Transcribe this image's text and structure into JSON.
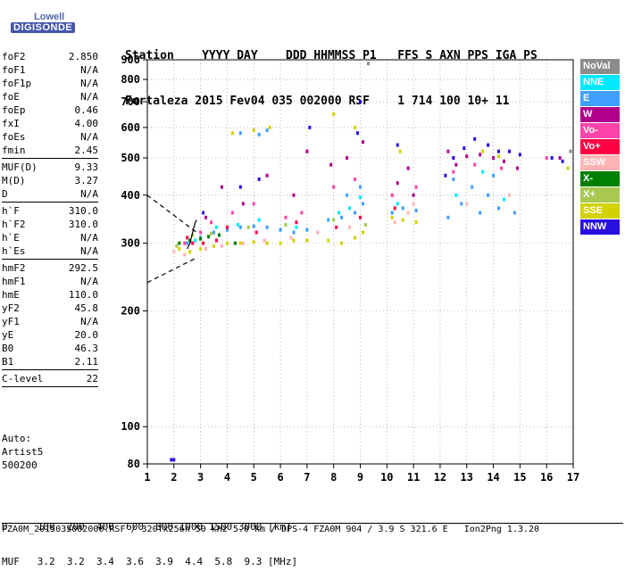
{
  "logo": {
    "company": "Lowell",
    "product": "DIGISONDE"
  },
  "header": {
    "line1": "Station    YYYY DAY    DDD HHMMSS P1   FFS S AXN PPS IGA PS",
    "line2": "Fortaleza 2015 Fev04 035 002000 RSF    1 714 100 10+ 11"
  },
  "params": [
    [
      {
        "key": "foF2",
        "value": "2.850"
      },
      {
        "key": "foF1",
        "value": "N/A"
      },
      {
        "key": "foF1p",
        "value": "N/A"
      },
      {
        "key": "foE",
        "value": "N/A"
      },
      {
        "key": "foEp",
        "value": "0.46"
      },
      {
        "key": "fxI",
        "value": "4.00"
      },
      {
        "key": "foEs",
        "value": "N/A"
      },
      {
        "key": "fmin",
        "value": "2.45"
      }
    ],
    [
      {
        "key": "MUF(D)",
        "value": "9.33"
      },
      {
        "key": "M(D)",
        "value": "3.27"
      },
      {
        "key": "D",
        "value": "N/A"
      }
    ],
    [
      {
        "key": "h`F",
        "value": "310.0"
      },
      {
        "key": "h`F2",
        "value": "310.0"
      },
      {
        "key": "h`E",
        "value": "N/A"
      },
      {
        "key": "h`Es",
        "value": "N/A"
      }
    ],
    [
      {
        "key": "hmF2",
        "value": "292.5"
      },
      {
        "key": "hmF1",
        "value": "N/A"
      },
      {
        "key": "hmE",
        "value": "110.0"
      },
      {
        "key": "yF2",
        "value": "45.8"
      },
      {
        "key": "yF1",
        "value": "N/A"
      },
      {
        "key": "yE",
        "value": "20.0"
      },
      {
        "key": "B0",
        "value": "46.3"
      },
      {
        "key": "B1",
        "value": "2.11"
      }
    ],
    [
      {
        "key": "C-level",
        "value": "22"
      }
    ]
  ],
  "autoscale": {
    "line1": "Auto:",
    "line2": "Artist5",
    "line3": "500200"
  },
  "legend": [
    {
      "label": "NoVal",
      "color": "#8c8c8c"
    },
    {
      "label": "NNE",
      "color": "#00e8ff"
    },
    {
      "label": "E",
      "color": "#3fa0ff"
    },
    {
      "label": "W",
      "color": "#b0008a"
    },
    {
      "label": "Vo-",
      "color": "#ff44aa"
    },
    {
      "label": "Vo+",
      "color": "#ff0044"
    },
    {
      "label": "SSW",
      "color": "#ffb4b4"
    },
    {
      "label": "X-",
      "color": "#008000"
    },
    {
      "label": "X+",
      "color": "#a8c850"
    },
    {
      "label": "SSE",
      "color": "#d2d200"
    },
    {
      "label": "NNW",
      "color": "#2a10e0"
    }
  ],
  "bottom": {
    "d_line": "D     100  200  400  600  800 1000 1500 3000 [km]",
    "muf_line": "MUF   3.2  3.2  3.4  3.6  3.9  4.4  5.8  9.3 [MHz]"
  },
  "footer": {
    "text": "FZA0M_2015035002000.RSF / 320fx256h 50 kHz 5.0 km / DPS-4 FZA0M 904 / 3.9 S 321.6 E   Ion2Png 1.3.20"
  },
  "chart_data": {
    "type": "scatter",
    "title": "",
    "xlabel": "",
    "ylabel": "",
    "xlim": [
      1,
      17
    ],
    "ylim": [
      80,
      900
    ],
    "yscale": "log",
    "grid": true,
    "xticks": [
      1,
      2,
      3,
      4,
      5,
      6,
      7,
      8,
      9,
      10,
      11,
      12,
      13,
      14,
      15,
      16,
      17
    ],
    "yticks": [
      80,
      100,
      200,
      300,
      400,
      500,
      600,
      700,
      800,
      900
    ],
    "legend_position": "right",
    "series": [
      {
        "name": "SSE",
        "color": "#d2d200",
        "points": [
          [
            2.2,
            290
          ],
          [
            2.6,
            285
          ],
          [
            3.0,
            290
          ],
          [
            3.5,
            295
          ],
          [
            4.0,
            300
          ],
          [
            4.5,
            300
          ],
          [
            5.0,
            302
          ],
          [
            5.5,
            300
          ],
          [
            6.0,
            300
          ],
          [
            6.5,
            305
          ],
          [
            7.0,
            305
          ],
          [
            7.8,
            305
          ],
          [
            8.3,
            300
          ],
          [
            8.8,
            310
          ],
          [
            9.1,
            320
          ],
          [
            10.2,
            350
          ],
          [
            10.6,
            345
          ],
          [
            11.1,
            340
          ],
          [
            4.2,
            580
          ],
          [
            5.0,
            590
          ],
          [
            5.6,
            600
          ],
          [
            8.0,
            650
          ],
          [
            8.8,
            600
          ],
          [
            10.5,
            520
          ],
          [
            13.6,
            520
          ],
          [
            14.2,
            505
          ],
          [
            16.8,
            470
          ]
        ]
      },
      {
        "name": "E",
        "color": "#3fa0ff",
        "points": [
          [
            2.5,
            300
          ],
          [
            3.0,
            310
          ],
          [
            3.5,
            320
          ],
          [
            4.0,
            325
          ],
          [
            4.5,
            330
          ],
          [
            5.0,
            332
          ],
          [
            5.5,
            330
          ],
          [
            6.0,
            325
          ],
          [
            6.5,
            320
          ],
          [
            7.0,
            325
          ],
          [
            7.8,
            345
          ],
          [
            8.3,
            350
          ],
          [
            8.8,
            360
          ],
          [
            9.1,
            380
          ],
          [
            10.2,
            360
          ],
          [
            10.6,
            370
          ],
          [
            11.1,
            365
          ],
          [
            12.3,
            350
          ],
          [
            12.8,
            380
          ],
          [
            13.2,
            420
          ],
          [
            13.8,
            400
          ],
          [
            14.2,
            370
          ],
          [
            14.8,
            360
          ],
          [
            4.5,
            580
          ],
          [
            5.2,
            575
          ],
          [
            5.5,
            590
          ],
          [
            8.5,
            400
          ],
          [
            9.0,
            420
          ],
          [
            12.5,
            440
          ],
          [
            14.0,
            450
          ],
          [
            13.5,
            360
          ]
        ]
      },
      {
        "name": "NNE",
        "color": "#00e8ff",
        "points": [
          [
            2.8,
            305
          ],
          [
            3.6,
            330
          ],
          [
            4.4,
            335
          ],
          [
            5.2,
            345
          ],
          [
            6.6,
            330
          ],
          [
            8.2,
            360
          ],
          [
            8.6,
            370
          ],
          [
            9.0,
            395
          ],
          [
            10.4,
            380
          ],
          [
            12.6,
            400
          ],
          [
            13.6,
            460
          ],
          [
            14.4,
            390
          ]
        ]
      },
      {
        "name": "W",
        "color": "#b0008a",
        "points": [
          [
            3.2,
            350
          ],
          [
            3.8,
            420
          ],
          [
            4.6,
            380
          ],
          [
            5.5,
            450
          ],
          [
            6.5,
            400
          ],
          [
            7.0,
            520
          ],
          [
            7.9,
            480
          ],
          [
            8.5,
            500
          ],
          [
            9.1,
            550
          ],
          [
            10.4,
            430
          ],
          [
            10.8,
            470
          ],
          [
            11.0,
            400
          ],
          [
            12.3,
            520
          ],
          [
            12.6,
            480
          ],
          [
            13.0,
            505
          ],
          [
            13.5,
            510
          ],
          [
            14.0,
            500
          ],
          [
            14.4,
            490
          ],
          [
            14.9,
            470
          ],
          [
            16.5,
            500
          ]
        ]
      },
      {
        "name": "Vo-",
        "color": "#ff44aa",
        "points": [
          [
            2.4,
            300
          ],
          [
            3.0,
            320
          ],
          [
            3.4,
            340
          ],
          [
            4.2,
            360
          ],
          [
            5.0,
            380
          ],
          [
            6.2,
            350
          ],
          [
            6.8,
            360
          ],
          [
            8.0,
            420
          ],
          [
            8.8,
            440
          ],
          [
            10.2,
            400
          ],
          [
            11.1,
            420
          ],
          [
            12.5,
            460
          ],
          [
            13.3,
            480
          ],
          [
            14.3,
            470
          ],
          [
            16.0,
            500
          ]
        ]
      },
      {
        "name": "Vo+",
        "color": "#ff0044",
        "points": [
          [
            2.5,
            310
          ],
          [
            2.7,
            300
          ],
          [
            3.1,
            300
          ],
          [
            3.6,
            305
          ],
          [
            4.0,
            330
          ],
          [
            5.1,
            320
          ],
          [
            6.6,
            340
          ],
          [
            8.1,
            330
          ],
          [
            9.0,
            350
          ],
          [
            10.3,
            370
          ]
        ]
      },
      {
        "name": "SSW",
        "color": "#ffb4b4",
        "points": [
          [
            2.0,
            285
          ],
          [
            2.4,
            280
          ],
          [
            3.2,
            290
          ],
          [
            3.8,
            295
          ],
          [
            4.6,
            300
          ],
          [
            5.4,
            305
          ],
          [
            6.4,
            310
          ],
          [
            7.4,
            320
          ],
          [
            8.6,
            330
          ],
          [
            10.3,
            340
          ],
          [
            10.8,
            360
          ],
          [
            11.0,
            380
          ],
          [
            13.0,
            380
          ],
          [
            14.6,
            400
          ]
        ]
      },
      {
        "name": "X-",
        "color": "#008000",
        "points": [
          [
            2.2,
            300
          ],
          [
            2.6,
            305
          ],
          [
            3.0,
            308
          ],
          [
            3.3,
            312
          ],
          [
            3.7,
            315
          ],
          [
            4.3,
            300
          ]
        ]
      },
      {
        "name": "X+",
        "color": "#a8c850",
        "points": [
          [
            2.1,
            295
          ],
          [
            2.7,
            315
          ],
          [
            3.4,
            318
          ],
          [
            4.8,
            330
          ],
          [
            6.2,
            335
          ],
          [
            8.0,
            345
          ],
          [
            9.2,
            335
          ]
        ]
      },
      {
        "name": "NNW",
        "color": "#2a10e0",
        "points": [
          [
            3.1,
            360
          ],
          [
            4.5,
            420
          ],
          [
            5.2,
            440
          ],
          [
            7.1,
            600
          ],
          [
            8.9,
            580
          ],
          [
            9.0,
            700
          ],
          [
            10.4,
            540
          ],
          [
            12.2,
            450
          ],
          [
            12.5,
            500
          ],
          [
            12.9,
            530
          ],
          [
            13.3,
            560
          ],
          [
            13.8,
            540
          ],
          [
            14.2,
            520
          ],
          [
            14.6,
            520
          ],
          [
            15.0,
            510
          ],
          [
            16.2,
            500
          ],
          [
            16.6,
            490
          ],
          [
            2.0,
            82
          ],
          [
            1.9,
            82
          ]
        ]
      },
      {
        "name": "NoVal",
        "color": "#8c8c8c",
        "points": [
          [
            9.3,
            880
          ],
          [
            16.9,
            520
          ]
        ]
      }
    ],
    "lines": [
      {
        "name": "virtual-height-trace",
        "color": "#000000",
        "points": [
          [
            2.5,
            290
          ],
          [
            2.6,
            300
          ],
          [
            2.7,
            320
          ],
          [
            2.8,
            340
          ],
          [
            2.85,
            345
          ]
        ]
      },
      {
        "name": "upper-dashed",
        "color": "#000000",
        "dashed": true,
        "points": [
          [
            1,
            400
          ],
          [
            2.85,
            320
          ]
        ]
      },
      {
        "name": "lower-dashed",
        "color": "#000000",
        "dashed": true,
        "points": [
          [
            1,
            237
          ],
          [
            2.85,
            275
          ]
        ]
      }
    ]
  }
}
